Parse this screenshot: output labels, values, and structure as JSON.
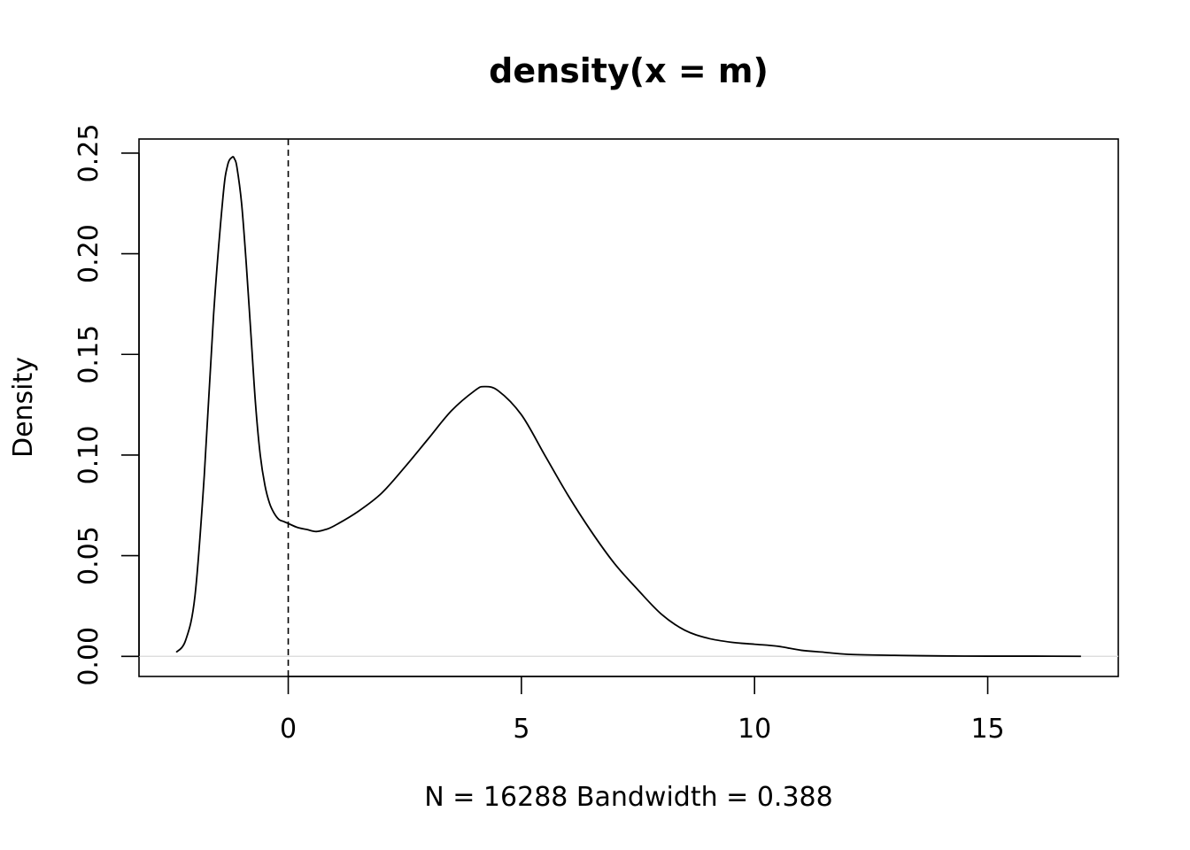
{
  "chart_data": {
    "type": "line",
    "title": "density(x = m)",
    "xlabel": "N = 16288   Bandwidth = 0.388",
    "ylabel": "Density",
    "xlim": [
      -3.2,
      17.8
    ],
    "ylim": [
      -0.01,
      0.257
    ],
    "x_ticks": [
      0,
      5,
      10,
      15
    ],
    "x_tick_labels": [
      "0",
      "5",
      "10",
      "15"
    ],
    "y_ticks": [
      0,
      0.05,
      0.1,
      0.15,
      0.2,
      0.25
    ],
    "y_tick_labels": [
      "0.00",
      "0.05",
      "0.10",
      "0.15",
      "0.20",
      "0.25"
    ],
    "grid": false,
    "reference_lines": [
      {
        "orientation": "vertical",
        "x": 0,
        "style": "dashed"
      },
      {
        "orientation": "horizontal",
        "y": 0,
        "style": "solid",
        "color": "#d9d9d9"
      }
    ],
    "series": [
      {
        "x": [
          -2.4,
          -2.2,
          -2.0,
          -1.8,
          -1.6,
          -1.4,
          -1.3,
          -1.2,
          -1.15,
          -1.1,
          -1.0,
          -0.9,
          -0.8,
          -0.7,
          -0.6,
          -0.5,
          -0.4,
          -0.3,
          -0.2,
          -0.1,
          0.0,
          0.2,
          0.4,
          0.6,
          0.8,
          1.0,
          1.5,
          2.0,
          2.5,
          3.0,
          3.5,
          4.0,
          4.2,
          4.5,
          5.0,
          5.5,
          6.0,
          6.5,
          7.0,
          7.5,
          8.0,
          8.5,
          9.0,
          9.5,
          10.0,
          10.5,
          11.0,
          11.5,
          12.0,
          13.0,
          14.0,
          15.0,
          16.0,
          17.0
        ],
        "y": [
          0.002,
          0.008,
          0.03,
          0.09,
          0.17,
          0.228,
          0.244,
          0.248,
          0.247,
          0.243,
          0.225,
          0.195,
          0.16,
          0.125,
          0.1,
          0.085,
          0.076,
          0.071,
          0.068,
          0.067,
          0.066,
          0.064,
          0.063,
          0.062,
          0.063,
          0.065,
          0.072,
          0.081,
          0.094,
          0.108,
          0.122,
          0.132,
          0.134,
          0.132,
          0.12,
          0.1,
          0.08,
          0.062,
          0.046,
          0.033,
          0.021,
          0.013,
          0.009,
          0.007,
          0.006,
          0.005,
          0.003,
          0.002,
          0.001,
          0.0005,
          0.0002,
          0.0001,
          0.0001,
          0.0
        ]
      }
    ]
  }
}
